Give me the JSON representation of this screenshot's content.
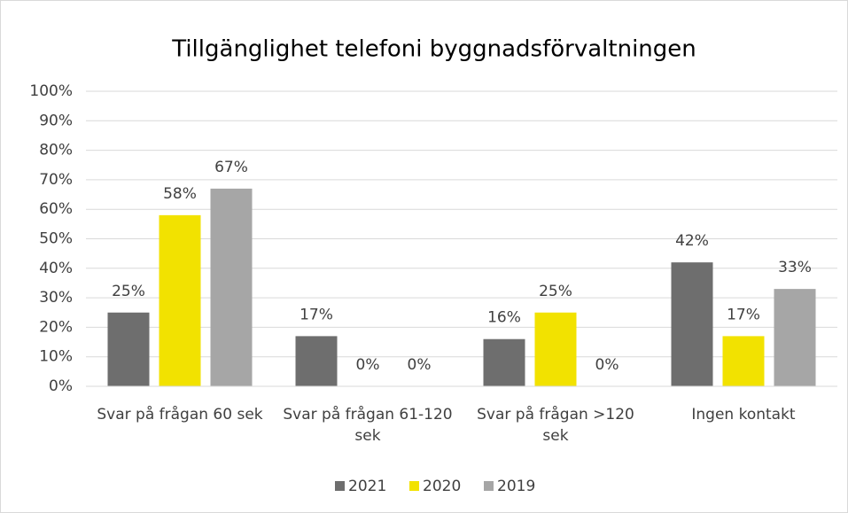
{
  "chart_data": {
    "type": "bar",
    "title": "Tillgänglighet telefoni byggnadsförvaltningen",
    "categories": [
      "Svar på frågan 60 sek",
      "Svar på frågan 61-120 sek",
      "Svar på frågan >120 sek",
      "Ingen kontakt"
    ],
    "series": [
      {
        "name": "2021",
        "color": "#6e6e6e",
        "values": [
          25,
          17,
          16,
          42
        ],
        "value_labels": [
          "25%",
          "17%",
          "16%",
          "42%"
        ]
      },
      {
        "name": "2020",
        "color": "#f2e200",
        "values": [
          58,
          0,
          25,
          17
        ],
        "value_labels": [
          "58%",
          "0%",
          "25%",
          "17%"
        ]
      },
      {
        "name": "2019",
        "color": "#a6a6a6",
        "values": [
          67,
          0,
          0,
          33
        ],
        "value_labels": [
          "67%",
          "0%",
          "0%",
          "33%"
        ]
      }
    ],
    "ylim": [
      0,
      100
    ],
    "yticks": [
      {
        "value": 0,
        "label": "0%"
      },
      {
        "value": 10,
        "label": "10%"
      },
      {
        "value": 20,
        "label": "20%"
      },
      {
        "value": 30,
        "label": "30%"
      },
      {
        "value": 40,
        "label": "40%"
      },
      {
        "value": 50,
        "label": "50%"
      },
      {
        "value": 60,
        "label": "60%"
      },
      {
        "value": 70,
        "label": "70%"
      },
      {
        "value": 80,
        "label": "80%"
      },
      {
        "value": 90,
        "label": "90%"
      },
      {
        "value": 100,
        "label": "100%"
      }
    ],
    "grid": true,
    "legend": "bottom"
  }
}
